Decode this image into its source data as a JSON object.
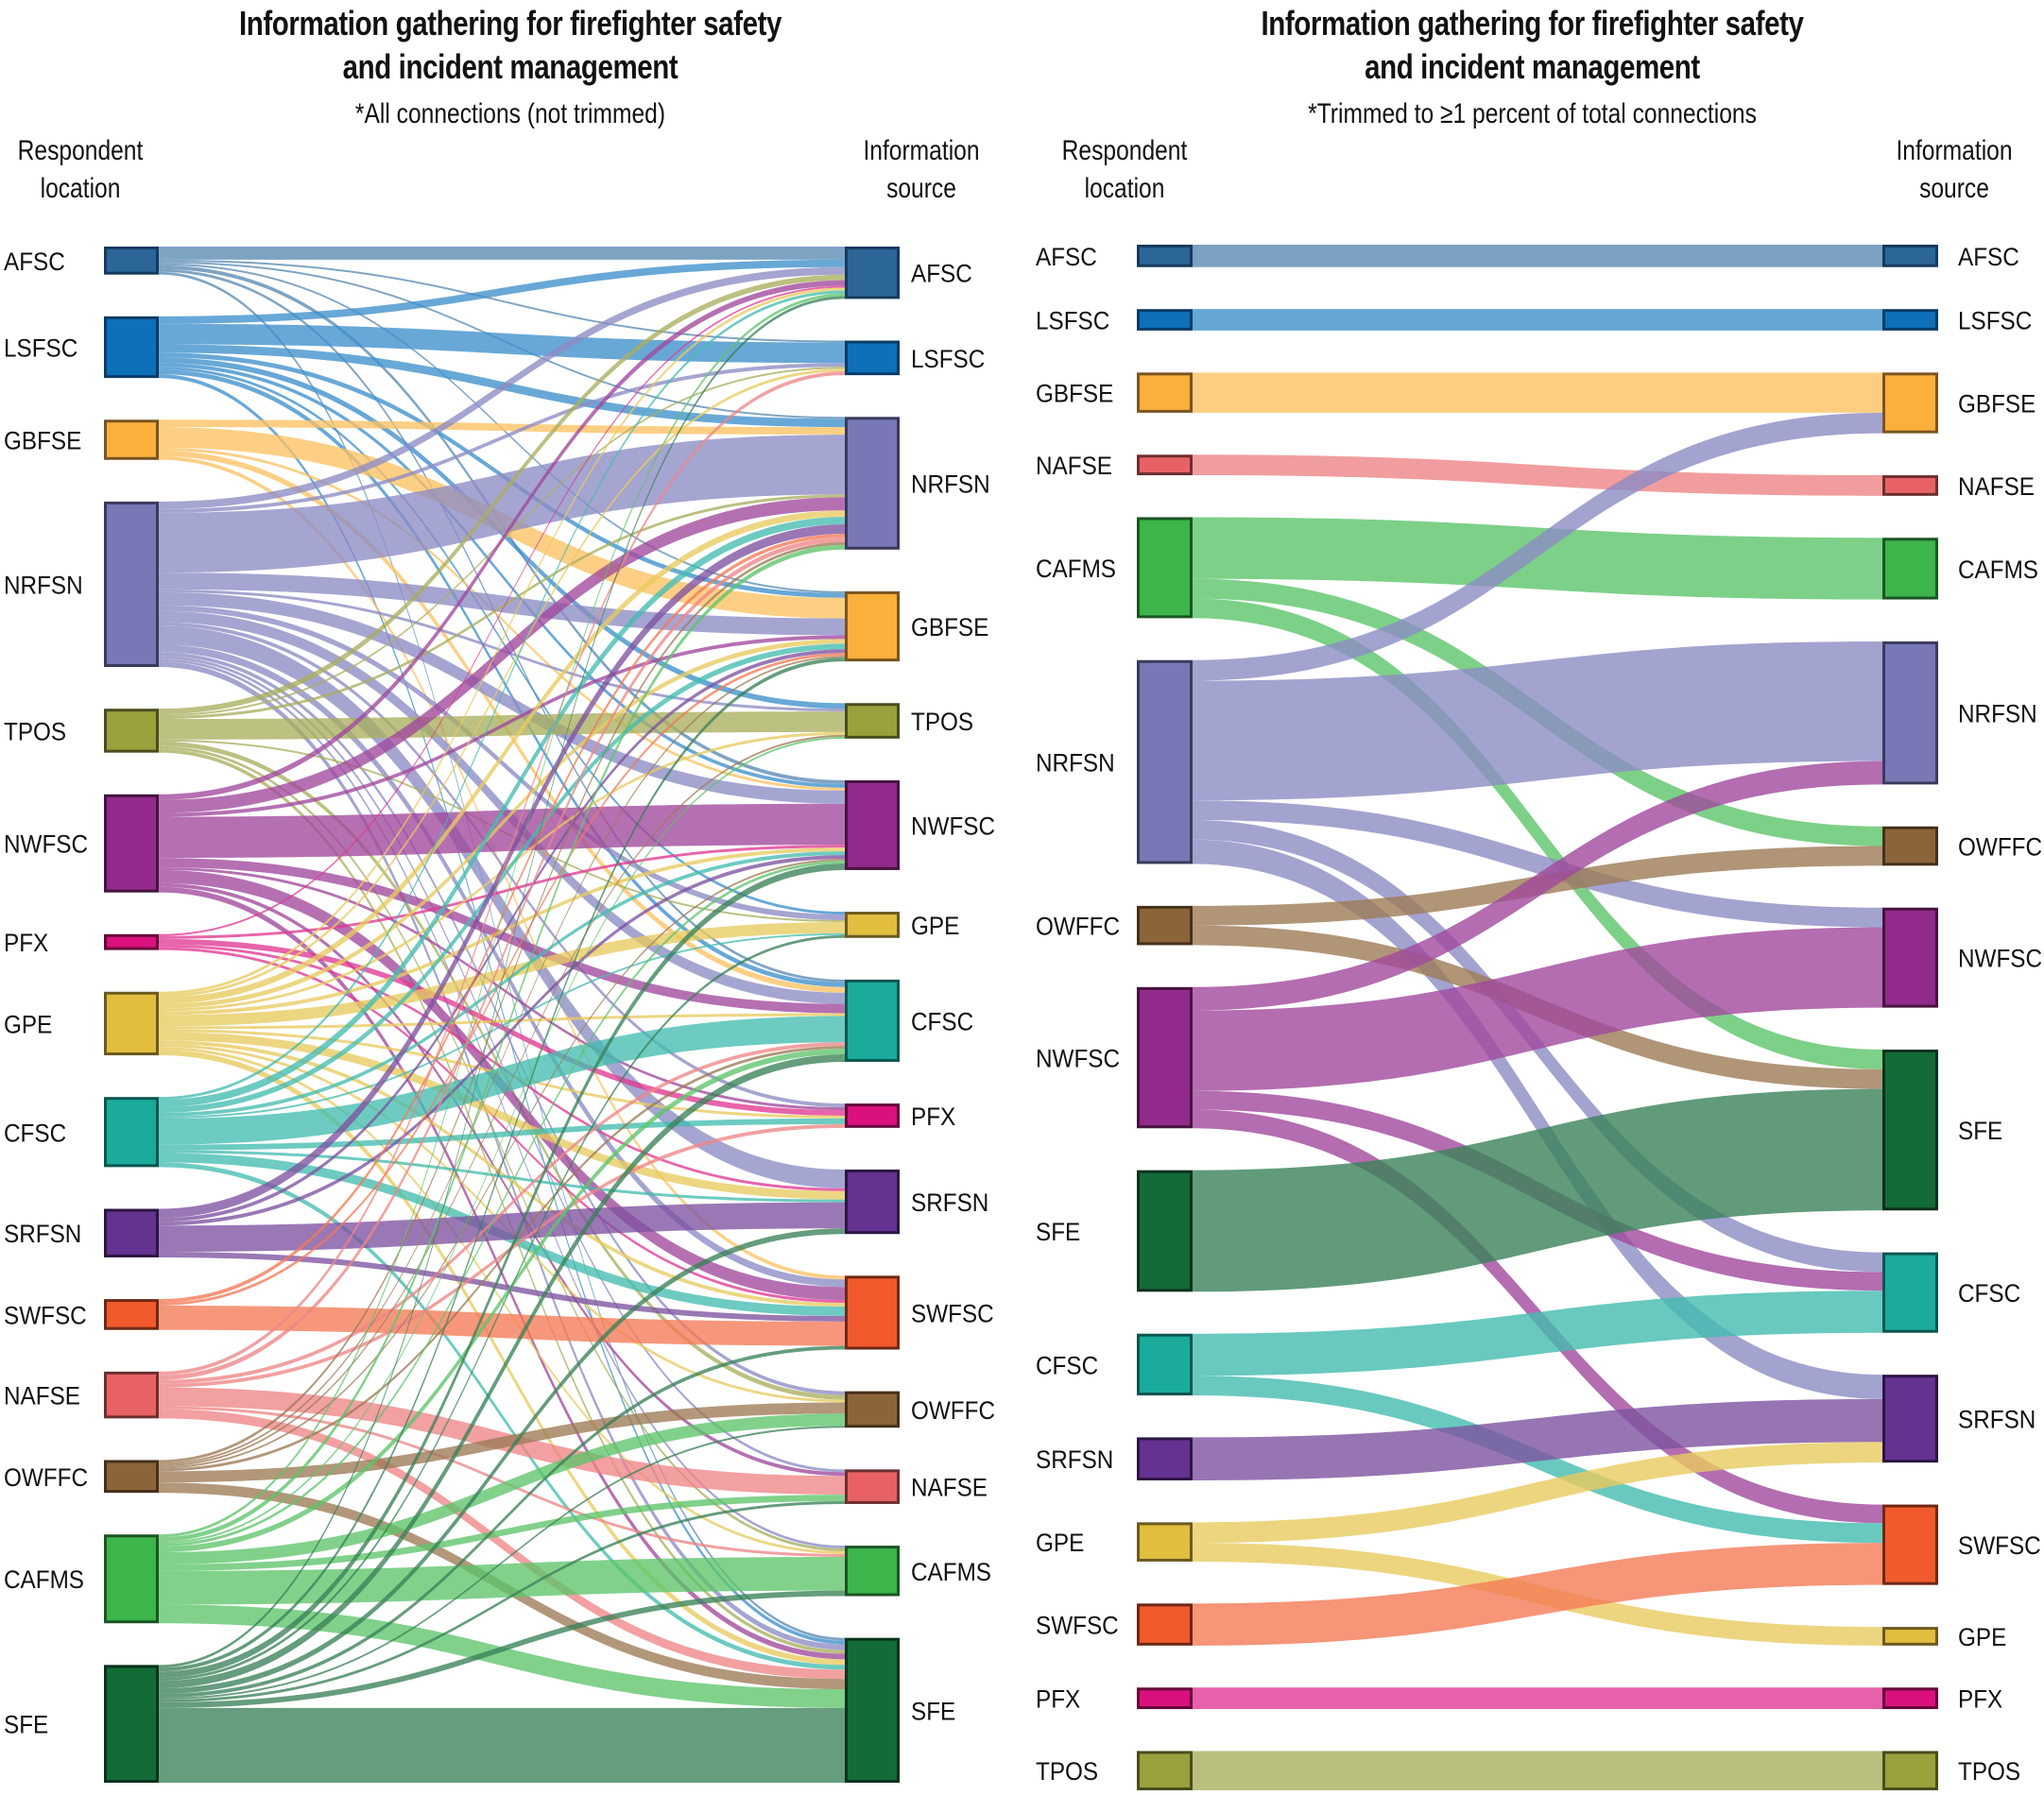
{
  "chart_data": [
    {
      "type": "sankey",
      "title": "Information gathering for firefighter safety and incident management",
      "title_lines": [
        "Information gathering for firefighter safety",
        "and incident management"
      ],
      "subtitle": "*All connections (not trimmed)",
      "left_axis_label": [
        "Respondent",
        "location"
      ],
      "right_axis_label": [
        "Information",
        "source"
      ],
      "value_unit": "relative connection count (approximate)",
      "left_nodes": [
        "AFSC",
        "LSFSC",
        "GBFSE",
        "NRFSN",
        "TPOS",
        "NWFSC",
        "PFX",
        "GPE",
        "CFSC",
        "SRFSN",
        "SWFSC",
        "NAFSE",
        "OWFFC",
        "CAFMS",
        "SFE"
      ],
      "right_nodes": [
        "AFSC",
        "LSFSC",
        "NRFSN",
        "GBFSE",
        "TPOS",
        "NWFSC",
        "GPE",
        "CFSC",
        "PFX",
        "SRFSN",
        "SWFSC",
        "OWFFC",
        "NAFSE",
        "CAFMS",
        "SFE"
      ],
      "links": [
        {
          "source": "AFSC",
          "target": "AFSC",
          "value": 14
        },
        {
          "source": "AFSC",
          "target": "LSFSC",
          "value": 2
        },
        {
          "source": "AFSC",
          "target": "NRFSN",
          "value": 2
        },
        {
          "source": "AFSC",
          "target": "GBFSE",
          "value": 2
        },
        {
          "source": "AFSC",
          "target": "NWFSC",
          "value": 4
        },
        {
          "source": "AFSC",
          "target": "CFSC",
          "value": 3
        },
        {
          "source": "AFSC",
          "target": "SFE",
          "value": 3
        },
        {
          "source": "LSFSC",
          "target": "AFSC",
          "value": 8
        },
        {
          "source": "LSFSC",
          "target": "LSFSC",
          "value": 22
        },
        {
          "source": "LSFSC",
          "target": "NRFSN",
          "value": 9
        },
        {
          "source": "LSFSC",
          "target": "GBFSE",
          "value": 5
        },
        {
          "source": "LSFSC",
          "target": "TPOS",
          "value": 6
        },
        {
          "source": "LSFSC",
          "target": "NWFSC",
          "value": 4
        },
        {
          "source": "LSFSC",
          "target": "CFSC",
          "value": 5
        },
        {
          "source": "LSFSC",
          "target": "GPE",
          "value": 3
        },
        {
          "source": "LSFSC",
          "target": "SFE",
          "value": 4
        },
        {
          "source": "GBFSE",
          "target": "NRFSN",
          "value": 8
        },
        {
          "source": "GBFSE",
          "target": "GBFSE",
          "value": 22
        },
        {
          "source": "GBFSE",
          "target": "NWFSC",
          "value": 3
        },
        {
          "source": "GBFSE",
          "target": "CFSC",
          "value": 6
        },
        {
          "source": "GBFSE",
          "target": "SWFSC",
          "value": 4
        },
        {
          "source": "NRFSN",
          "target": "AFSC",
          "value": 8
        },
        {
          "source": "NRFSN",
          "target": "LSFSC",
          "value": 4
        },
        {
          "source": "NRFSN",
          "target": "NRFSN",
          "value": 64
        },
        {
          "source": "NRFSN",
          "target": "GBFSE",
          "value": 18
        },
        {
          "source": "NRFSN",
          "target": "TPOS",
          "value": 3
        },
        {
          "source": "NRFSN",
          "target": "NWFSC",
          "value": 14
        },
        {
          "source": "NRFSN",
          "target": "GPE",
          "value": 6
        },
        {
          "source": "NRFSN",
          "target": "CFSC",
          "value": 12
        },
        {
          "source": "NRFSN",
          "target": "PFX",
          "value": 4
        },
        {
          "source": "NRFSN",
          "target": "SRFSN",
          "value": 20
        },
        {
          "source": "NRFSN",
          "target": "SWFSC",
          "value": 8
        },
        {
          "source": "NRFSN",
          "target": "OWFFC",
          "value": 4
        },
        {
          "source": "NRFSN",
          "target": "NAFSE",
          "value": 3
        },
        {
          "source": "NRFSN",
          "target": "CAFMS",
          "value": 3
        },
        {
          "source": "NRFSN",
          "target": "SFE",
          "value": 6
        },
        {
          "source": "TPOS",
          "target": "AFSC",
          "value": 6
        },
        {
          "source": "TPOS",
          "target": "LSFSC",
          "value": 2
        },
        {
          "source": "TPOS",
          "target": "NRFSN",
          "value": 3
        },
        {
          "source": "TPOS",
          "target": "TPOS",
          "value": 22
        },
        {
          "source": "TPOS",
          "target": "GPE",
          "value": 2
        },
        {
          "source": "TPOS",
          "target": "OWFFC",
          "value": 5
        },
        {
          "source": "TPOS",
          "target": "CAFMS",
          "value": 3
        },
        {
          "source": "TPOS",
          "target": "SFE",
          "value": 4
        },
        {
          "source": "NWFSC",
          "target": "AFSC",
          "value": 6
        },
        {
          "source": "NWFSC",
          "target": "NRFSN",
          "value": 14
        },
        {
          "source": "NWFSC",
          "target": "GBFSE",
          "value": 4
        },
        {
          "source": "NWFSC",
          "target": "NWFSC",
          "value": 44
        },
        {
          "source": "NWFSC",
          "target": "CFSC",
          "value": 10
        },
        {
          "source": "NWFSC",
          "target": "PFX",
          "value": 3
        },
        {
          "source": "NWFSC",
          "target": "SWFSC",
          "value": 14
        },
        {
          "source": "NWFSC",
          "target": "NAFSE",
          "value": 4
        },
        {
          "source": "NWFSC",
          "target": "SFE",
          "value": 6
        },
        {
          "source": "PFX",
          "target": "AFSC",
          "value": 2
        },
        {
          "source": "PFX",
          "target": "NWFSC",
          "value": 3
        },
        {
          "source": "PFX",
          "target": "PFX",
          "value": 6
        },
        {
          "source": "PFX",
          "target": "SRFSN",
          "value": 3
        },
        {
          "source": "PFX",
          "target": "SWFSC",
          "value": 3
        },
        {
          "source": "GPE",
          "target": "AFSC",
          "value": 3
        },
        {
          "source": "GPE",
          "target": "LSFSC",
          "value": 3
        },
        {
          "source": "GPE",
          "target": "NRFSN",
          "value": 7
        },
        {
          "source": "GPE",
          "target": "GBFSE",
          "value": 5
        },
        {
          "source": "GPE",
          "target": "TPOS",
          "value": 3
        },
        {
          "source": "GPE",
          "target": "NWFSC",
          "value": 4
        },
        {
          "source": "GPE",
          "target": "GPE",
          "value": 12
        },
        {
          "source": "GPE",
          "target": "CFSC",
          "value": 3
        },
        {
          "source": "GPE",
          "target": "PFX",
          "value": 3
        },
        {
          "source": "GPE",
          "target": "SRFSN",
          "value": 9
        },
        {
          "source": "GPE",
          "target": "SWFSC",
          "value": 4
        },
        {
          "source": "GPE",
          "target": "OWFFC",
          "value": 3
        },
        {
          "source": "GPE",
          "target": "CAFMS",
          "value": 3
        },
        {
          "source": "GPE",
          "target": "SFE",
          "value": 6
        },
        {
          "source": "CFSC",
          "target": "AFSC",
          "value": 3
        },
        {
          "source": "CFSC",
          "target": "NRFSN",
          "value": 8
        },
        {
          "source": "CFSC",
          "target": "GBFSE",
          "value": 6
        },
        {
          "source": "CFSC",
          "target": "NWFSC",
          "value": 4
        },
        {
          "source": "CFSC",
          "target": "GPE",
          "value": 2
        },
        {
          "source": "CFSC",
          "target": "CFSC",
          "value": 28
        },
        {
          "source": "CFSC",
          "target": "PFX",
          "value": 6
        },
        {
          "source": "CFSC",
          "target": "SRFSN",
          "value": 3
        },
        {
          "source": "CFSC",
          "target": "SWFSC",
          "value": 10
        },
        {
          "source": "CFSC",
          "target": "SFE",
          "value": 5
        },
        {
          "source": "SRFSN",
          "target": "NRFSN",
          "value": 10
        },
        {
          "source": "SRFSN",
          "target": "GBFSE",
          "value": 4
        },
        {
          "source": "SRFSN",
          "target": "NWFSC",
          "value": 4
        },
        {
          "source": "SRFSN",
          "target": "SRFSN",
          "value": 28
        },
        {
          "source": "SRFSN",
          "target": "SWFSC",
          "value": 6
        },
        {
          "source": "SWFSC",
          "target": "NRFSN",
          "value": 4
        },
        {
          "source": "SWFSC",
          "target": "GBFSE",
          "value": 3
        },
        {
          "source": "SWFSC",
          "target": "SWFSC",
          "value": 26
        },
        {
          "source": "NAFSE",
          "target": "LSFSC",
          "value": 4
        },
        {
          "source": "NAFSE",
          "target": "NRFSN",
          "value": 5
        },
        {
          "source": "NAFSE",
          "target": "CFSC",
          "value": 4
        },
        {
          "source": "NAFSE",
          "target": "PFX",
          "value": 4
        },
        {
          "source": "NAFSE",
          "target": "NAFSE",
          "value": 20
        },
        {
          "source": "NAFSE",
          "target": "CAFMS",
          "value": 3
        },
        {
          "source": "NAFSE",
          "target": "SFE",
          "value": 10
        },
        {
          "source": "OWFFC",
          "target": "NRFSN",
          "value": 3
        },
        {
          "source": "OWFFC",
          "target": "GBFSE",
          "value": 2
        },
        {
          "source": "OWFFC",
          "target": "TPOS",
          "value": 2
        },
        {
          "source": "OWFFC",
          "target": "NWFSC",
          "value": 2
        },
        {
          "source": "OWFFC",
          "target": "CFSC",
          "value": 3
        },
        {
          "source": "OWFFC",
          "target": "OWFFC",
          "value": 12
        },
        {
          "source": "OWFFC",
          "target": "SFE",
          "value": 11
        },
        {
          "source": "CAFMS",
          "target": "AFSC",
          "value": 3
        },
        {
          "source": "CAFMS",
          "target": "NRFSN",
          "value": 5
        },
        {
          "source": "CAFMS",
          "target": "TPOS",
          "value": 2
        },
        {
          "source": "CAFMS",
          "target": "NWFSC",
          "value": 3
        },
        {
          "source": "CAFMS",
          "target": "CFSC",
          "value": 6
        },
        {
          "source": "CAFMS",
          "target": "OWFFC",
          "value": 13
        },
        {
          "source": "CAFMS",
          "target": "NAFSE",
          "value": 7
        },
        {
          "source": "CAFMS",
          "target": "CAFMS",
          "value": 36
        },
        {
          "source": "CAFMS",
          "target": "SFE",
          "value": 20
        },
        {
          "source": "SFE",
          "target": "AFSC",
          "value": 3
        },
        {
          "source": "SFE",
          "target": "GBFSE",
          "value": 4
        },
        {
          "source": "SFE",
          "target": "NWFSC",
          "value": 7
        },
        {
          "source": "SFE",
          "target": "GPE",
          "value": 3
        },
        {
          "source": "SFE",
          "target": "CFSC",
          "value": 8
        },
        {
          "source": "SFE",
          "target": "SRFSN",
          "value": 6
        },
        {
          "source": "SFE",
          "target": "SWFSC",
          "value": 4
        },
        {
          "source": "SFE",
          "target": "OWFFC",
          "value": 2
        },
        {
          "source": "SFE",
          "target": "NAFSE",
          "value": 3
        },
        {
          "source": "SFE",
          "target": "CAFMS",
          "value": 6
        },
        {
          "source": "SFE",
          "target": "SFE",
          "value": 80
        }
      ]
    },
    {
      "type": "sankey",
      "title": "Information gathering for firefighter safety and incident management",
      "title_lines": [
        "Information gathering for firefighter safety",
        "and incident management"
      ],
      "subtitle": "*Trimmed to ≥1 percent of total connections",
      "left_axis_label": [
        "Respondent",
        "location"
      ],
      "right_axis_label": [
        "Information",
        "source"
      ],
      "value_unit": "relative connection count (approximate)",
      "left_nodes": [
        "AFSC",
        "LSFSC",
        "GBFSE",
        "NAFSE",
        "CAFMS",
        "NRFSN",
        "OWFFC",
        "NWFSC",
        "SFE",
        "CFSC",
        "SRFSN",
        "GPE",
        "SWFSC",
        "PFX",
        "TPOS"
      ],
      "right_nodes": [
        "AFSC",
        "LSFSC",
        "GBFSE",
        "NAFSE",
        "CAFMS",
        "NRFSN",
        "OWFFC",
        "NWFSC",
        "SFE",
        "CFSC",
        "SRFSN",
        "SWFSC",
        "GPE",
        "PFX",
        "TPOS"
      ],
      "links": [
        {
          "source": "AFSC",
          "target": "AFSC",
          "value": 24
        },
        {
          "source": "LSFSC",
          "target": "LSFSC",
          "value": 23
        },
        {
          "source": "GBFSE",
          "target": "GBFSE",
          "value": 43
        },
        {
          "source": "NAFSE",
          "target": "NAFSE",
          "value": 22
        },
        {
          "source": "CAFMS",
          "target": "CAFMS",
          "value": 66
        },
        {
          "source": "CAFMS",
          "target": "OWFFC",
          "value": 21
        },
        {
          "source": "CAFMS",
          "target": "SFE",
          "value": 21
        },
        {
          "source": "NRFSN",
          "target": "GBFSE",
          "value": 22
        },
        {
          "source": "NRFSN",
          "target": "NRFSN",
          "value": 128
        },
        {
          "source": "NRFSN",
          "target": "NWFSC",
          "value": 21
        },
        {
          "source": "NRFSN",
          "target": "CFSC",
          "value": 21
        },
        {
          "source": "NRFSN",
          "target": "SRFSN",
          "value": 26
        },
        {
          "source": "OWFFC",
          "target": "OWFFC",
          "value": 21
        },
        {
          "source": "OWFFC",
          "target": "SFE",
          "value": 21
        },
        {
          "source": "NWFSC",
          "target": "NRFSN",
          "value": 25
        },
        {
          "source": "NWFSC",
          "target": "NWFSC",
          "value": 86
        },
        {
          "source": "NWFSC",
          "target": "CFSC",
          "value": 20
        },
        {
          "source": "NWFSC",
          "target": "SWFSC",
          "value": 20
        },
        {
          "source": "SFE",
          "target": "SFE",
          "value": 130
        },
        {
          "source": "CFSC",
          "target": "CFSC",
          "value": 45
        },
        {
          "source": "CFSC",
          "target": "SWFSC",
          "value": 21
        },
        {
          "source": "SRFSN",
          "target": "SRFSN",
          "value": 46
        },
        {
          "source": "GPE",
          "target": "SRFSN",
          "value": 22
        },
        {
          "source": "GPE",
          "target": "GPE",
          "value": 20
        },
        {
          "source": "SWFSC",
          "target": "SWFSC",
          "value": 45
        },
        {
          "source": "PFX",
          "target": "PFX",
          "value": 23
        },
        {
          "source": "TPOS",
          "target": "TPOS",
          "value": 42
        }
      ]
    }
  ],
  "node_colors": {
    "AFSC": {
      "fill": "#2c6699",
      "stroke": "#163a5c",
      "link": "#5a8ab3"
    },
    "LSFSC": {
      "fill": "#0e70b9",
      "stroke": "#0a3c66",
      "link": "#3d90cc"
    },
    "GBFSE": {
      "fill": "#fbb03b",
      "stroke": "#7a5420",
      "link": "#fcc263"
    },
    "NAFSE": {
      "fill": "#e86265",
      "stroke": "#6e2e30",
      "link": "#ee8587"
    },
    "CAFMS": {
      "fill": "#3cb54a",
      "stroke": "#1c5424",
      "link": "#5dc46a"
    },
    "NRFSN": {
      "fill": "#7878b6",
      "stroke": "#3a3a5c",
      "link": "#8c8cc4"
    },
    "OWFFC": {
      "fill": "#8b6539",
      "stroke": "#45301b",
      "link": "#9c7a55"
    },
    "NWFSC": {
      "fill": "#912a8b",
      "stroke": "#46133f",
      "link": "#a0489c"
    },
    "SFE": {
      "fill": "#136b38",
      "stroke": "#0a321b",
      "link": "#3a8259"
    },
    "CFSC": {
      "fill": "#1aab9b",
      "stroke": "#0c5650",
      "link": "#44bcaf"
    },
    "SRFSN": {
      "fill": "#643290",
      "stroke": "#2d1543",
      "link": "#7d52a0"
    },
    "GPE": {
      "fill": "#e2be3f",
      "stroke": "#6b5a20",
      "link": "#e8cb5f"
    },
    "SWFSC": {
      "fill": "#f15a2c",
      "stroke": "#6e2815",
      "link": "#f47a56"
    },
    "PFX": {
      "fill": "#da107e",
      "stroke": "#660939",
      "link": "#e03994"
    },
    "TPOS": {
      "fill": "#9aa03c",
      "stroke": "#4a4d1c",
      "link": "#a9ae5e"
    }
  }
}
